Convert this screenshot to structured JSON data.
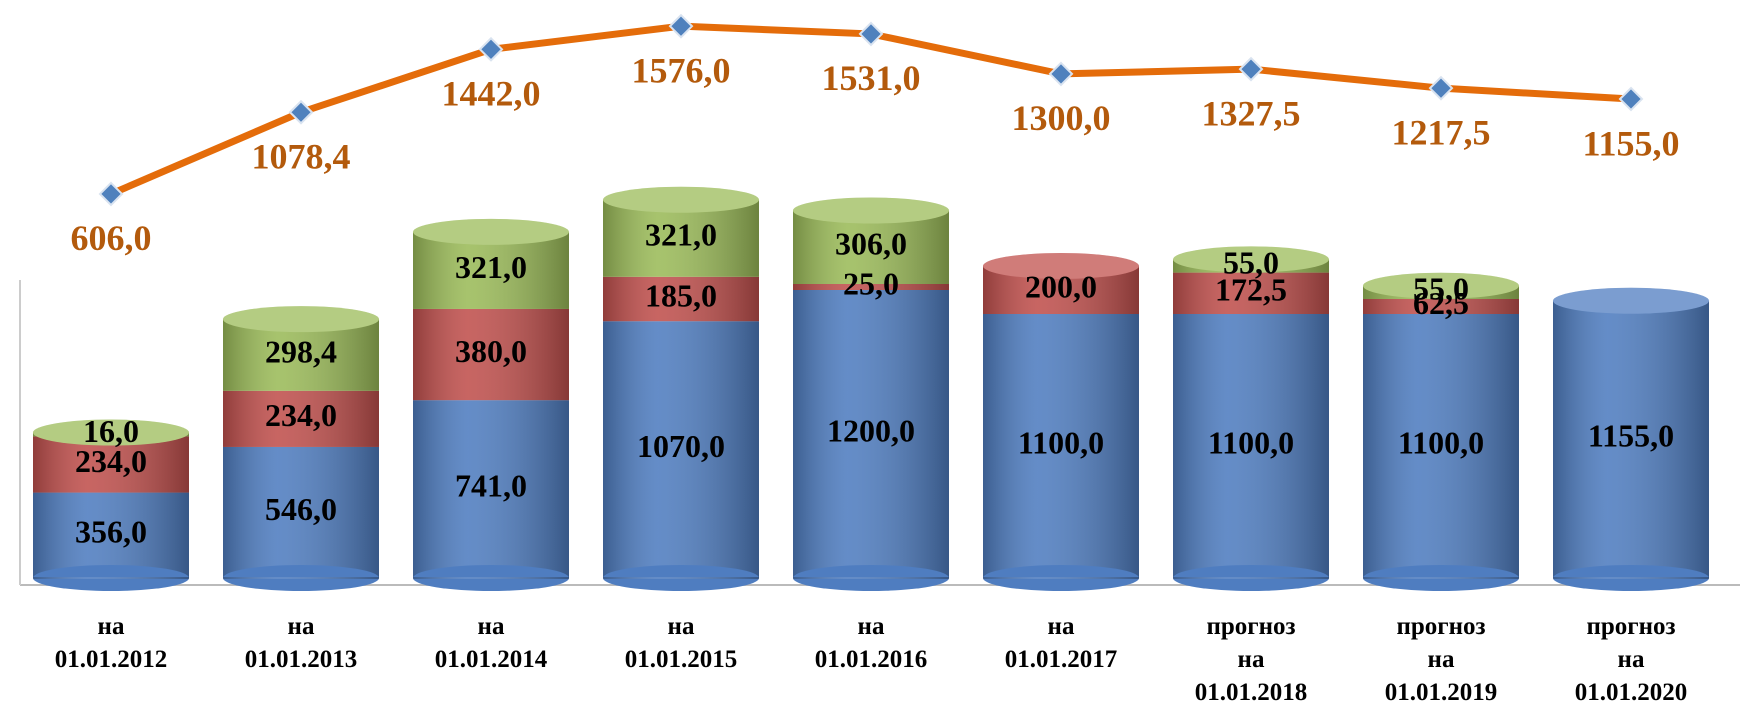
{
  "chart_data": {
    "type": "bar",
    "categories": [
      "на\n01.01.2012",
      "на\n01.01.2013",
      "на\n01.01.2014",
      "на\n01.01.2015",
      "на\n01.01.2016",
      "на\n01.01.2017",
      "прогноз\nна\n01.01.2018",
      "прогноз\nна\n01.01.2019",
      "прогноз\nна\n01.01.2020"
    ],
    "stacked": true,
    "ylim": [
      0,
      2200
    ],
    "y2lim": [
      600,
      1600
    ],
    "series": [
      {
        "color": "#4f7dc0",
        "values": [
          356,
          546,
          741,
          1070,
          1200,
          1100,
          1100,
          1100,
          1155
        ],
        "value_labels": [
          "356,0",
          "546,0",
          "741,0",
          "1070,0",
          "1200,0",
          "1100,0",
          "1100,0",
          "1100,0",
          "1155,0"
        ]
      },
      {
        "color": "#c0504d",
        "values": [
          234,
          234,
          380,
          185,
          25,
          200,
          172.5,
          62.5,
          null
        ],
        "value_labels": [
          "234,0",
          "234,0",
          "380,0",
          "185,0",
          "25,0",
          "200,0",
          "172,5",
          "62,5",
          null
        ]
      },
      {
        "color": "#9bbb59",
        "values": [
          16,
          298.4,
          321,
          321,
          306,
          null,
          55,
          55,
          null
        ],
        "value_labels": [
          "16,0",
          "298,4",
          "321,0",
          "321,0",
          "306,0",
          null,
          "55,0",
          "55,0",
          null
        ]
      },
      {
        "type": "line",
        "axis": "y2",
        "color": "#e46c0a",
        "marker_color": "#4f81bd",
        "values": [
          606,
          1078.4,
          1442,
          1576,
          1531,
          1300,
          1327.5,
          1217.5,
          1155
        ],
        "value_labels": [
          "606,0",
          "1078,4",
          "1442,0",
          "1576,0",
          "1531,0",
          "1300,0",
          "1327,5",
          "1217,5",
          "1155,0"
        ],
        "label_color": "#b35a0c"
      }
    ]
  }
}
